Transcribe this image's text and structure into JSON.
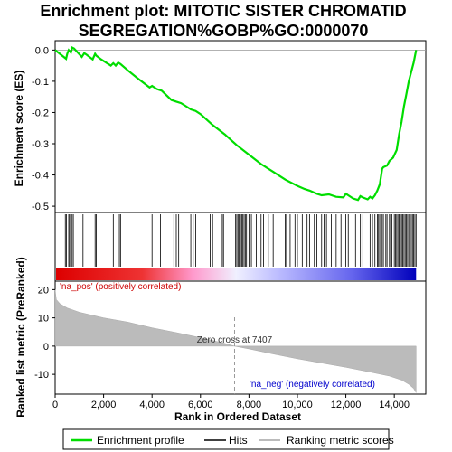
{
  "title_line1": "Enrichment plot: MITOTIC SISTER CHROMATID",
  "title_line2": "SEGREGATION%GOBP%GO:0000070",
  "chart_data": {
    "type": "line",
    "panels": {
      "enrichment": {
        "ylabel": "Enrichment score (ES)",
        "ylim": [
          -0.52,
          0.03
        ],
        "yticks": [
          0.0,
          -0.1,
          -0.2,
          -0.3,
          -0.4,
          -0.5
        ],
        "ytick_labels": [
          "0.0",
          "-0.1",
          "-0.2",
          "-0.3",
          "-0.4",
          "-0.5"
        ],
        "series": [
          {
            "name": "Enrichment profile",
            "color": "#00dd00",
            "x": [
              0,
              450,
              500,
              560,
              650,
              700,
              780,
              900,
              1100,
              1200,
              1300,
              1550,
              1650,
              1700,
              1900,
              2100,
              2300,
              2400,
              2500,
              2600,
              2700,
              3000,
              3400,
              3900,
              4000,
              4200,
              4400,
              4800,
              5000,
              5200,
              5400,
              5600,
              5800,
              6000,
              6500,
              7000,
              7500,
              8000,
              8500,
              9000,
              9500,
              10000,
              10300,
              10500,
              10800,
              11000,
              11300,
              11600,
              11900,
              12000,
              12100,
              12300,
              12500,
              12600,
              12700,
              12900,
              13000,
              13100,
              13200,
              13300,
              13400,
              13500,
              13550,
              13700,
              13800,
              13950,
              14100,
              14200,
              14300,
              14400,
              14500,
              14600,
              14700,
              14800,
              14900
            ],
            "y": [
              0.0,
              -0.028,
              -0.012,
              0.0,
              -0.008,
              0.008,
              0.005,
              -0.005,
              -0.022,
              -0.01,
              -0.015,
              -0.03,
              -0.012,
              -0.018,
              -0.03,
              -0.04,
              -0.05,
              -0.042,
              -0.05,
              -0.04,
              -0.045,
              -0.065,
              -0.09,
              -0.12,
              -0.115,
              -0.125,
              -0.13,
              -0.16,
              -0.165,
              -0.17,
              -0.18,
              -0.19,
              -0.195,
              -0.205,
              -0.24,
              -0.27,
              -0.305,
              -0.335,
              -0.365,
              -0.39,
              -0.415,
              -0.435,
              -0.445,
              -0.45,
              -0.46,
              -0.465,
              -0.462,
              -0.47,
              -0.472,
              -0.46,
              -0.465,
              -0.475,
              -0.48,
              -0.468,
              -0.472,
              -0.478,
              -0.47,
              -0.475,
              -0.465,
              -0.45,
              -0.43,
              -0.38,
              -0.375,
              -0.37,
              -0.355,
              -0.345,
              -0.32,
              -0.27,
              -0.23,
              -0.18,
              -0.14,
              -0.1,
              -0.07,
              -0.04,
              0.0
            ]
          }
        ]
      },
      "hits": {
        "positions": [
          420,
          470,
          560,
          600,
          700,
          750,
          1150,
          1650,
          1700,
          2400,
          2650,
          2700,
          4000,
          4350,
          4900,
          5000,
          5100,
          5600,
          5700,
          5800,
          6400,
          6500,
          6900,
          6950,
          7450,
          7500,
          7550,
          7600,
          7650,
          7700,
          7750,
          7800,
          7850,
          7900,
          8000,
          8100,
          8300,
          8500,
          8600,
          8800,
          9000,
          9200,
          9500,
          9550,
          9700,
          9900,
          10000,
          10200,
          10400,
          10500,
          10700,
          10800,
          11000,
          11100,
          11200,
          11400,
          11600,
          11800,
          12000,
          12100,
          12400,
          12600,
          12700,
          13000,
          13100,
          13200,
          13300,
          13350,
          13400,
          13450,
          13500,
          13550,
          13650,
          13700,
          13800,
          13850,
          13900,
          14000,
          14050,
          14100,
          14150,
          14200,
          14250,
          14300,
          14350,
          14400,
          14450,
          14500,
          14550,
          14600,
          14650,
          14700,
          14750,
          14800,
          14850,
          14900
        ]
      },
      "ranking": {
        "ylabel": "Ranked list metric (PreRanked)",
        "xlabel": "Rank in Ordered Dataset",
        "xlim": [
          0,
          15300
        ],
        "xticks": [
          0,
          2000,
          4000,
          6000,
          8000,
          10000,
          12000,
          14000
        ],
        "xtick_labels": [
          "0",
          "2,000",
          "4,000",
          "6,000",
          "8,000",
          "10,000",
          "12,000",
          "14,000"
        ],
        "ylim": [
          -17,
          23
        ],
        "yticks": [
          20,
          10,
          0,
          -10
        ],
        "ytick_labels": [
          "20",
          "10",
          "0",
          "-10"
        ],
        "x": [
          0,
          50,
          200,
          500,
          1000,
          2000,
          3000,
          4000,
          5000,
          6000,
          7000,
          7407,
          8000,
          9000,
          10000,
          11000,
          12000,
          13000,
          13800,
          14300,
          14600,
          14800,
          14900
        ],
        "values": [
          20.0,
          16.5,
          15.0,
          13.5,
          12.0,
          10.0,
          8.5,
          6.5,
          4.8,
          3.0,
          1.0,
          0.0,
          -1.0,
          -2.8,
          -4.5,
          -6.0,
          -7.5,
          -9.2,
          -10.6,
          -12.0,
          -13.5,
          -15.0,
          -16.5
        ],
        "zero_cross_label": "Zero cross at 7407",
        "pos_label": "'na_pos' (positively correlated)",
        "neg_label": "'na_neg' (negatively correlated)"
      }
    }
  },
  "legend": {
    "items": [
      {
        "label": "Enrichment profile",
        "color": "#00dd00"
      },
      {
        "label": "Hits",
        "color": "#000000"
      },
      {
        "label": "Ranking metric scores",
        "color": "#bbbbbb"
      }
    ]
  }
}
